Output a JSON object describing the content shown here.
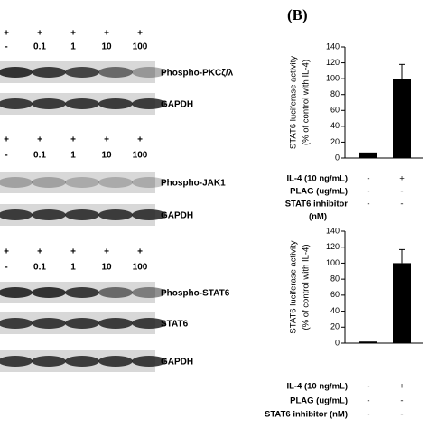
{
  "panel_label": "(B)",
  "blots": [
    {
      "treatments": [
        [
          "+",
          "+",
          "+",
          "+",
          "+"
        ],
        [
          "-",
          "0.1",
          "1",
          "10",
          "100"
        ]
      ],
      "bands": [
        "Phospho-PKCζ/λ",
        "GAPDH"
      ]
    },
    {
      "treatments": [
        [
          "+",
          "+",
          "+",
          "+",
          "+"
        ],
        [
          "-",
          "0.1",
          "1",
          "10",
          "100"
        ]
      ],
      "bands": [
        "Phospho-JAK1",
        "GAPDH"
      ]
    },
    {
      "treatments": [
        [
          "+",
          "+",
          "+",
          "+",
          "+"
        ],
        [
          "-",
          "0.1",
          "1",
          "10",
          "100"
        ]
      ],
      "bands": [
        "Phospho-STAT6",
        "STAT6",
        "GAPDH"
      ]
    }
  ],
  "chart_data": [
    {
      "type": "bar",
      "ylabel": [
        "STAT6 luciferase activity",
        "(% of control with IL-4)"
      ],
      "values": [
        7,
        100
      ],
      "errors": [
        null,
        18
      ],
      "color": "#000000",
      "ylim": [
        0,
        140
      ],
      "yticks": [
        0,
        20,
        40,
        60,
        80,
        100,
        120,
        140
      ],
      "conditions": [
        {
          "label": [
            "IL-4 (10 ng/mL)"
          ],
          "marks": [
            "-",
            "+"
          ]
        },
        {
          "label": [
            "PLAG (ug/mL)"
          ],
          "marks": [
            "-",
            "-"
          ]
        },
        {
          "label": [
            "STAT6 inhibitor",
            "(nM)"
          ],
          "marks": [
            "-",
            "-"
          ]
        }
      ]
    },
    {
      "type": "bar",
      "ylabel": [
        "STAT6 luciferase activity",
        "(% of control with IL-4)"
      ],
      "values": [
        2,
        100
      ],
      "errors": [
        null,
        17
      ],
      "color": "#000000",
      "ylim": [
        0,
        140
      ],
      "yticks": [
        0,
        20,
        40,
        60,
        80,
        100,
        120,
        140
      ],
      "conditions": [
        {
          "label": [
            "IL-4 (10 ng/mL)"
          ],
          "marks": [
            "-",
            "+"
          ]
        },
        {
          "label": [
            "PLAG (ug/mL)"
          ],
          "marks": [
            "-",
            "-"
          ]
        },
        {
          "label": [
            "STAT6 inhibitor (nM)"
          ],
          "marks": [
            "-",
            "-"
          ]
        }
      ]
    }
  ]
}
